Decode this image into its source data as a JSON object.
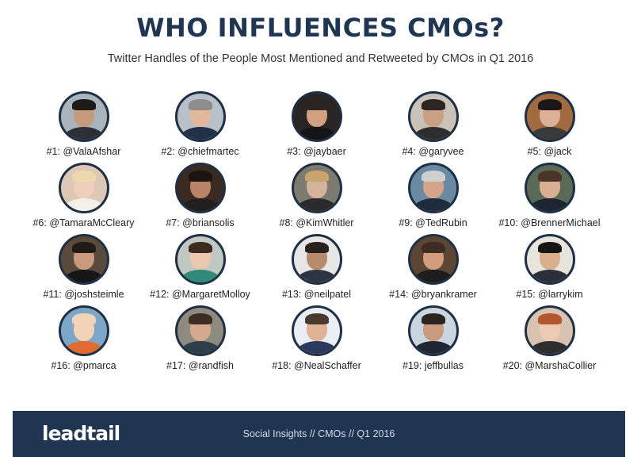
{
  "header": {
    "title": "WHO INFLUENCES CMOs?",
    "subtitle": "Twitter Handles of the People Most Mentioned and Retweeted by CMOs in Q1 2016"
  },
  "influencers": [
    {
      "label": "#1: @ValaAfshar",
      "bg": "#a9b3bb",
      "skin": "#c79a7c",
      "hair": "#1e1a18",
      "shirt": "#2c2f36"
    },
    {
      "label": "#2: @chiefmartec",
      "bg": "#b8c0c8",
      "skin": "#e2b79c",
      "hair": "#8d8d8d",
      "shirt": "#23304a"
    },
    {
      "label": "#3: @jaybaer",
      "bg": "#2a2522",
      "skin": "#d29f80",
      "hair": "#2a2522",
      "shirt": "#141414"
    },
    {
      "label": "#4: @garyvee",
      "bg": "#c9c2b8",
      "skin": "#c9a084",
      "hair": "#2d2521",
      "shirt": "#2e2e2e"
    },
    {
      "label": "#5: @jack",
      "bg": "#a16a3f",
      "skin": "#dbb096",
      "hair": "#1c1815",
      "shirt": "#3a3a3a"
    },
    {
      "label": "#6: @TamaraMcCleary",
      "bg": "#dcc8b4",
      "skin": "#efcfbb",
      "hair": "#ecd9ab",
      "shirt": "#f4efe8"
    },
    {
      "label": "#7: @briansolis",
      "bg": "#3b2a22",
      "skin": "#b78468",
      "hair": "#1b1411",
      "shirt": "#22201e"
    },
    {
      "label": "#8: @KimWhitler",
      "bg": "#7d7a70",
      "skin": "#d5b39b",
      "hair": "#c9a46e",
      "shirt": "#2a2a2a"
    },
    {
      "label": "#9: @TedRubin",
      "bg": "#6a8aa4",
      "skin": "#d4a58a",
      "hair": "#cfcfcf",
      "shirt": "#1f2a3a"
    },
    {
      "label": "#10: @BrennerMichael",
      "bg": "#5a6a57",
      "skin": "#d9ae93",
      "hair": "#4a3426",
      "shirt": "#1d2433"
    },
    {
      "label": "#11: @joshsteimle",
      "bg": "#5a4a3d",
      "skin": "#c99a7e",
      "hair": "#221a15",
      "shirt": "#161616"
    },
    {
      "label": "#12: @MargaretMolloy",
      "bg": "#bfc9c1",
      "skin": "#ecc7b0",
      "hair": "#3d2a20",
      "shirt": "#2f8a7a"
    },
    {
      "label": "#13: @neilpatel",
      "bg": "#e6e6e6",
      "skin": "#b98a6d",
      "hair": "#2b211c",
      "shirt": "#2d3340"
    },
    {
      "label": "#14: @bryankramer",
      "bg": "#5b4636",
      "skin": "#d09d7d",
      "hair": "#3c2c22",
      "shirt": "#1d1d1d"
    },
    {
      "label": "#15: @larrykim",
      "bg": "#e7e4de",
      "skin": "#d9ae8b",
      "hair": "#171514",
      "shirt": "#2a2f3a"
    },
    {
      "label": "#16: @pmarca",
      "bg": "#7da7c8",
      "skin": "#f2d3b8",
      "hair": "#f2d3b8",
      "shirt": "#e06a2f"
    },
    {
      "label": "#17: @randfish",
      "bg": "#8f8a80",
      "skin": "#d5a98d",
      "hair": "#3b2d22",
      "shirt": "#2f3f4a"
    },
    {
      "label": "#18: @NealSchaffer",
      "bg": "#e8eef3",
      "skin": "#e0b396",
      "hair": "#4a3a2e",
      "shirt": "#2a3a5a"
    },
    {
      "label": "#19: jeffbullas",
      "bg": "#c9d6df",
      "skin": "#c99a7c",
      "hair": "#2a2420",
      "shirt": "#1e2632"
    },
    {
      "label": "#20: @MarshaCollier",
      "bg": "#d8c3b3",
      "skin": "#efcab2",
      "hair": "#b2562e",
      "shirt": "#2e2e2e"
    }
  ],
  "footer": {
    "logo": "leadtail",
    "text": "Social Insights  //  CMOs  //  Q1 2016",
    "background": "#1f3551"
  }
}
